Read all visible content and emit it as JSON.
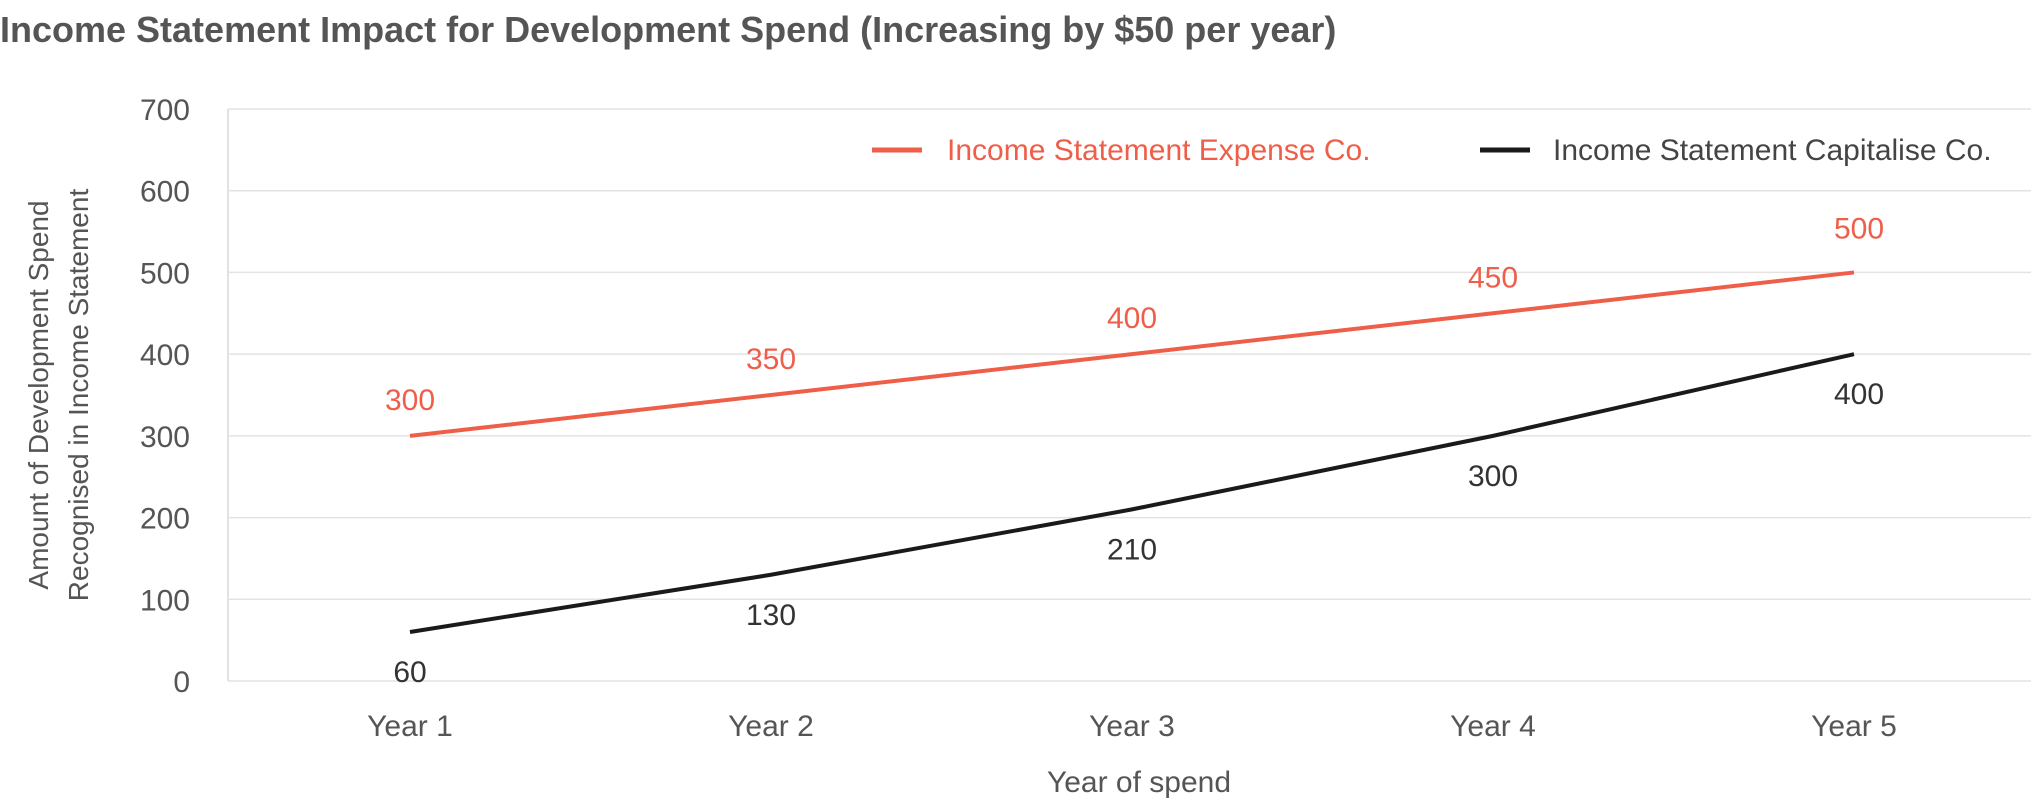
{
  "chart_data": {
    "type": "line",
    "title": "Income Statement Impact for Development Spend (Increasing by $50 per year)",
    "xlabel": "Year of spend",
    "ylabel": [
      "Amount of Development Spend",
      "Recognised in Income Statement"
    ],
    "categories": [
      "Year 1",
      "Year 2",
      "Year 3",
      "Year 4",
      "Year 5"
    ],
    "ylim": [
      0,
      700
    ],
    "yticks": [
      0,
      100,
      200,
      300,
      400,
      500,
      600,
      700
    ],
    "grid": true,
    "legend_position": "top-right",
    "series": [
      {
        "name": "Income Statement Expense Co.",
        "color": "#EE5E48",
        "values": [
          300,
          350,
          400,
          450,
          500
        ],
        "label_position": "above"
      },
      {
        "name": "Income Statement Capitalise Co.",
        "color": "#1A1A1A",
        "values": [
          60,
          130,
          210,
          300,
          400
        ],
        "label_position": "below"
      }
    ]
  }
}
